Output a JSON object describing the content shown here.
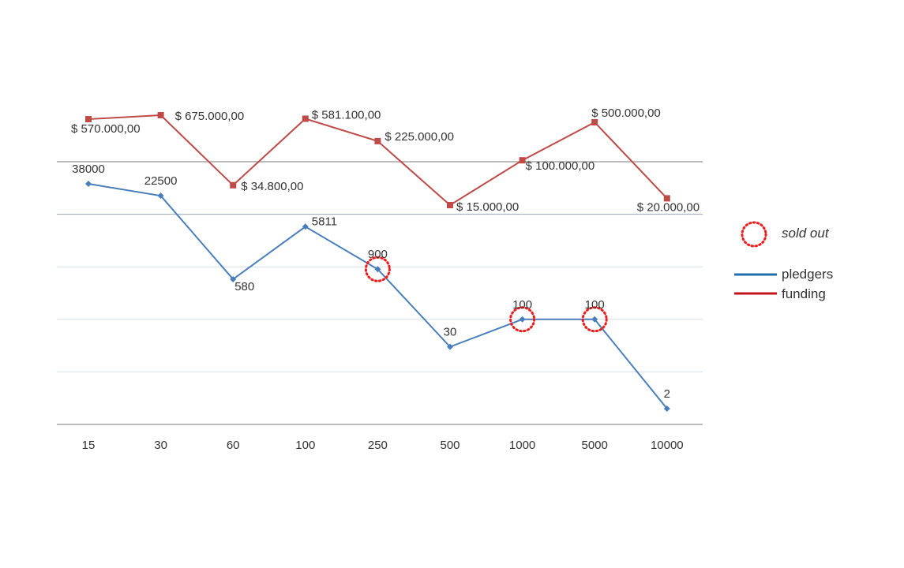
{
  "colors": {
    "pledgers": "#4a7ebb",
    "funding": "#be4b48",
    "sold_out": "#ee1c1c",
    "gridline": "#d6dfe8",
    "axis": "#a5a5a5"
  },
  "chart_data": {
    "type": "line",
    "title": "",
    "xlabel": "",
    "ylabel": "",
    "grid": true,
    "legend_position": "right",
    "categories": [
      "15",
      "30",
      "60",
      "100",
      "250",
      "500",
      "1000",
      "5000",
      "10000"
    ],
    "series": [
      {
        "name": "pledgers",
        "values": [
          38000,
          22500,
          580,
          5811,
          900,
          30,
          100,
          100,
          2
        ],
        "labels": [
          "38000",
          "22500",
          "580",
          "5811",
          "900",
          "30",
          "100",
          "100",
          "2"
        ],
        "scale": "log",
        "ylim": [
          1,
          100000
        ]
      },
      {
        "name": "funding",
        "values": [
          570000,
          675000,
          34800,
          581100,
          225000,
          15000,
          100000,
          500000,
          20000
        ],
        "labels": [
          "$ 570.000,00",
          "$ 675.000,00",
          "$ 34.800,00",
          "$ 581.100,00",
          "$ 225.000,00",
          "$ 15.000,00",
          "$ 100.000,00",
          "$ 500.000,00",
          "$ 20.000,00"
        ],
        "scale": "log"
      }
    ],
    "sold_out_indices": [
      4,
      6,
      7
    ],
    "legend": {
      "sold_out": "sold out",
      "pledgers": "pledgers",
      "funding": "funding"
    }
  }
}
